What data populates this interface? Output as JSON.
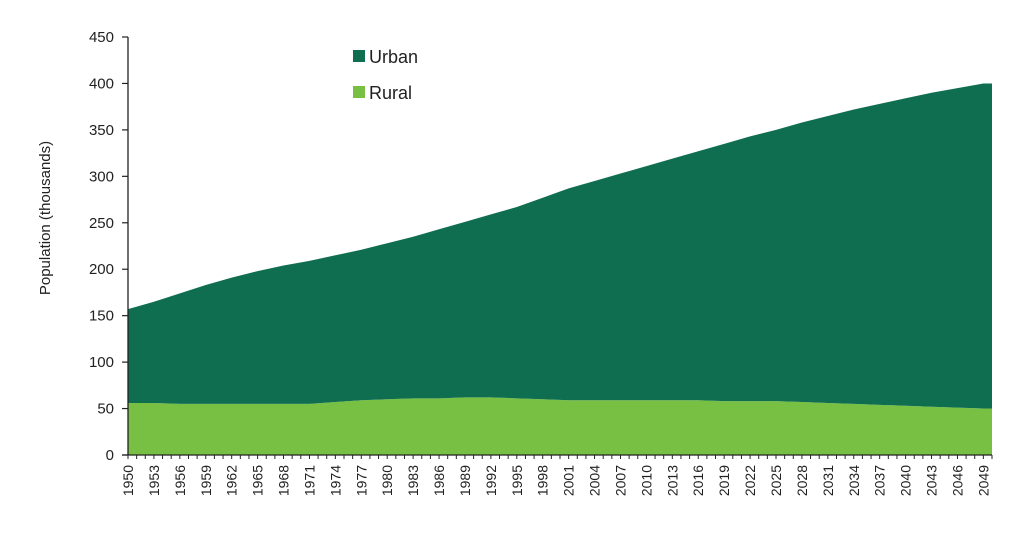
{
  "chart_data": {
    "type": "area",
    "stacked": true,
    "title": "",
    "xlabel": "",
    "ylabel": "Population (thousands)",
    "ylim": [
      0,
      450
    ],
    "yticks": [
      0,
      50,
      100,
      150,
      200,
      250,
      300,
      350,
      400,
      450
    ],
    "xlim": [
      1950,
      2050
    ],
    "x": [
      1950,
      1953,
      1956,
      1959,
      1962,
      1965,
      1968,
      1971,
      1974,
      1977,
      1980,
      1983,
      1986,
      1989,
      1992,
      1995,
      1998,
      2001,
      2004,
      2007,
      2010,
      2013,
      2016,
      2019,
      2022,
      2025,
      2028,
      2031,
      2034,
      2037,
      2040,
      2043,
      2046,
      2049
    ],
    "xtick_labels": [
      "1950",
      "1953",
      "1956",
      "1959",
      "1962",
      "1965",
      "1968",
      "1971",
      "1974",
      "1977",
      "1980",
      "1983",
      "1986",
      "1989",
      "1992",
      "1995",
      "1998",
      "2001",
      "2004",
      "2007",
      "2010",
      "2013",
      "2016",
      "2019",
      "2022",
      "2025",
      "2028",
      "2031",
      "2034",
      "2037",
      "2040",
      "2043",
      "2046",
      "2049"
    ],
    "legend_position": "top-left",
    "series": [
      {
        "name": "Rural",
        "color": "#78c043",
        "values": [
          56,
          56,
          55,
          55,
          55,
          55,
          55,
          55,
          57,
          59,
          60,
          61,
          61,
          62,
          62,
          61,
          60,
          59,
          59,
          59,
          59,
          59,
          59,
          58,
          58,
          58,
          57,
          56,
          55,
          54,
          53,
          52,
          51,
          50
        ]
      },
      {
        "name": "Urban",
        "color": "#0f6e50",
        "values": [
          101,
          109,
          119,
          128,
          136,
          143,
          149,
          154,
          158,
          162,
          168,
          174,
          182,
          189,
          197,
          206,
          217,
          228,
          236,
          244,
          252,
          260,
          268,
          277,
          285,
          292,
          301,
          309,
          317,
          324,
          331,
          338,
          344,
          350
        ]
      }
    ],
    "legend": [
      {
        "label": "Urban",
        "color": "#0f6e50"
      },
      {
        "label": "Rural",
        "color": "#78c043"
      }
    ]
  }
}
